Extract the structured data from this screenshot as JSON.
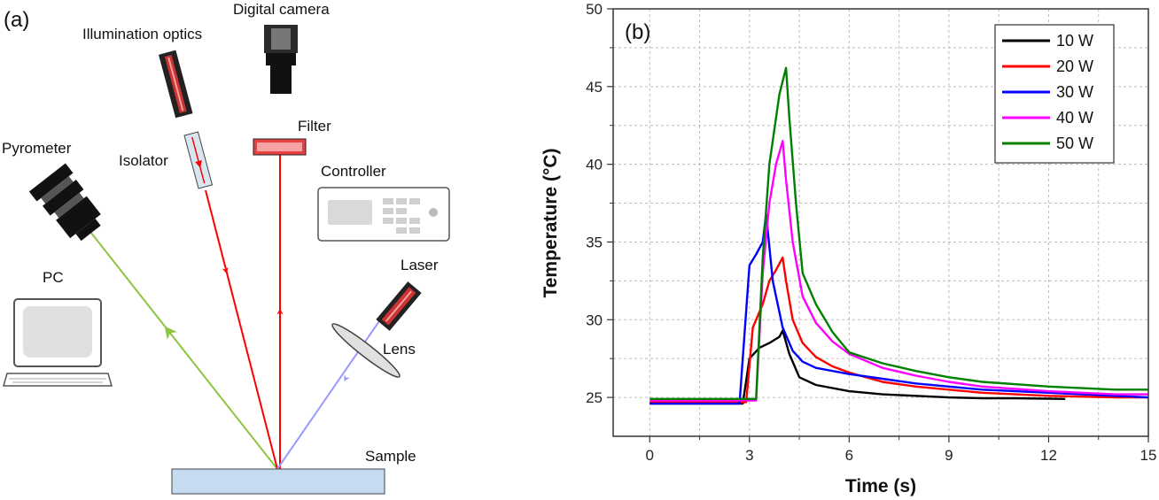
{
  "diagram": {
    "panel_label": "(a)",
    "labels": {
      "digital_camera": "Digital camera",
      "illumination_optics": "Illumination optics",
      "filter": "Filter",
      "pyrometer": "Pyrometer",
      "isolator": "Isolator",
      "controller": "Controller",
      "laser": "Laser",
      "pc": "PC",
      "lens": "Lens",
      "sample": "Sample"
    },
    "colors": {
      "illumination_beam": "#ff0000",
      "pyrometer_beam": "#8cc63f",
      "laser_beam": "#9999ff",
      "sample_fill": "#c5dcf0"
    }
  },
  "chart_data": {
    "type": "line",
    "panel_label": "(b)",
    "xlabel": "Time (s)",
    "ylabel": "Temperature (°C)",
    "xlim": [
      -1.1,
      15
    ],
    "ylim": [
      22.5,
      50
    ],
    "xticks": [
      0,
      3,
      6,
      9,
      12,
      15
    ],
    "yticks": [
      25,
      30,
      35,
      40,
      45,
      50
    ],
    "grid": true,
    "legend_position": "top-right",
    "series": [
      {
        "name": "10 W",
        "color": "#000000",
        "x": [
          0,
          2.8,
          3.0,
          3.3,
          3.6,
          3.9,
          4.0,
          4.2,
          4.5,
          5.0,
          6.0,
          7.0,
          8.0,
          9.0,
          10.0,
          11.0,
          12.5
        ],
        "y": [
          24.6,
          24.6,
          27.5,
          28.2,
          28.5,
          28.9,
          29.3,
          27.8,
          26.3,
          25.8,
          25.4,
          25.2,
          25.1,
          25.0,
          24.95,
          24.95,
          24.9
        ]
      },
      {
        "name": "20 W",
        "color": "#ff0000",
        "x": [
          0,
          2.9,
          3.1,
          3.4,
          3.6,
          3.8,
          4.0,
          4.1,
          4.3,
          4.6,
          5.0,
          5.5,
          6.0,
          7.0,
          8.0,
          9.0,
          10.0,
          12.0,
          14.0,
          15.0
        ],
        "y": [
          24.7,
          24.7,
          29.5,
          31.0,
          32.5,
          33.2,
          34.0,
          32.5,
          30.0,
          28.5,
          27.6,
          27.0,
          26.6,
          26.0,
          25.7,
          25.5,
          25.3,
          25.1,
          25.0,
          25.0
        ]
      },
      {
        "name": "30 W",
        "color": "#0000ff",
        "x": [
          0,
          2.7,
          3.0,
          3.2,
          3.4,
          3.5,
          3.7,
          4.0,
          4.3,
          4.6,
          5.0,
          6.0,
          7.0,
          8.0,
          9.0,
          10.0,
          12.0,
          14.0,
          15.0
        ],
        "y": [
          24.6,
          24.6,
          33.5,
          34.2,
          35.0,
          36.8,
          32.5,
          29.5,
          28.0,
          27.3,
          26.9,
          26.5,
          26.2,
          25.9,
          25.7,
          25.5,
          25.3,
          25.1,
          25.0
        ]
      },
      {
        "name": "40 W",
        "color": "#ff00ff",
        "x": [
          0,
          3.2,
          3.4,
          3.6,
          3.8,
          4.0,
          4.1,
          4.3,
          4.6,
          5.0,
          5.5,
          6.0,
          7.0,
          8.0,
          9.0,
          10.0,
          12.0,
          14.0,
          15.0
        ],
        "y": [
          24.8,
          24.8,
          33.0,
          37.5,
          40.0,
          41.5,
          39.0,
          35.0,
          31.5,
          29.8,
          28.6,
          27.8,
          26.9,
          26.4,
          26.0,
          25.7,
          25.4,
          25.2,
          25.2
        ]
      },
      {
        "name": "50 W",
        "color": "#008000",
        "x": [
          0,
          3.2,
          3.4,
          3.6,
          3.9,
          4.1,
          4.2,
          4.4,
          4.6,
          5.0,
          5.5,
          6.0,
          7.0,
          8.0,
          9.0,
          10.0,
          12.0,
          14.0,
          15.0
        ],
        "y": [
          24.9,
          24.9,
          34.0,
          40.0,
          44.5,
          46.2,
          43.0,
          37.5,
          33.0,
          31.0,
          29.2,
          27.9,
          27.2,
          26.7,
          26.3,
          26.0,
          25.7,
          25.5,
          25.5
        ]
      }
    ]
  }
}
